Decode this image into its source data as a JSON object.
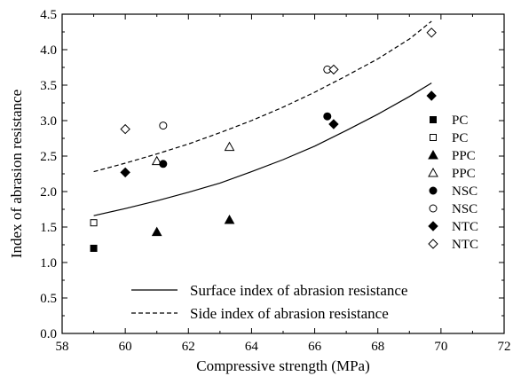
{
  "chart_data": {
    "type": "scatter",
    "title": "",
    "xlabel": "Compressive strength (MPa)",
    "ylabel": "Index of abrasion resistance",
    "xlim": [
      58,
      72
    ],
    "ylim": [
      0.0,
      4.5
    ],
    "xticks": [
      "58",
      "60",
      "62",
      "64",
      "66",
      "68",
      "70",
      "72"
    ],
    "yticks": [
      "0.0",
      "0.5",
      "1.0",
      "1.5",
      "2.0",
      "2.5",
      "3.0",
      "3.5",
      "4.0",
      "4.5"
    ],
    "grid": false,
    "legend_position": "right",
    "series": [
      {
        "name": "PC",
        "marker": "square",
        "filled": true,
        "points": [
          {
            "x": 59.0,
            "y": 1.2
          }
        ]
      },
      {
        "name": "PC",
        "marker": "square",
        "filled": false,
        "points": [
          {
            "x": 59.0,
            "y": 1.56
          }
        ]
      },
      {
        "name": "PPC",
        "marker": "triangle",
        "filled": true,
        "points": [
          {
            "x": 61.0,
            "y": 1.43
          },
          {
            "x": 63.3,
            "y": 1.6
          }
        ]
      },
      {
        "name": "PPC",
        "marker": "triangle",
        "filled": false,
        "points": [
          {
            "x": 61.0,
            "y": 2.43
          },
          {
            "x": 63.3,
            "y": 2.63
          }
        ]
      },
      {
        "name": "NSC",
        "marker": "circle",
        "filled": true,
        "points": [
          {
            "x": 61.2,
            "y": 2.39
          },
          {
            "x": 66.4,
            "y": 3.06
          }
        ]
      },
      {
        "name": "NSC",
        "marker": "circle",
        "filled": false,
        "points": [
          {
            "x": 61.2,
            "y": 2.93
          },
          {
            "x": 66.4,
            "y": 3.72
          }
        ]
      },
      {
        "name": "NTC",
        "marker": "diamond",
        "filled": true,
        "points": [
          {
            "x": 60.0,
            "y": 2.27
          },
          {
            "x": 66.6,
            "y": 2.95
          },
          {
            "x": 69.7,
            "y": 3.35
          }
        ]
      },
      {
        "name": "NTC",
        "marker": "diamond",
        "filled": false,
        "points": [
          {
            "x": 60.0,
            "y": 2.88
          },
          {
            "x": 66.6,
            "y": 3.72
          },
          {
            "x": 69.7,
            "y": 4.24
          }
        ]
      }
    ],
    "fit_lines": [
      {
        "name": "Surface index of abrasion resistance",
        "style": "solid",
        "points": [
          {
            "x": 59.0,
            "y": 1.66
          },
          {
            "x": 60.0,
            "y": 1.76
          },
          {
            "x": 61.0,
            "y": 1.87
          },
          {
            "x": 62.0,
            "y": 1.99
          },
          {
            "x": 63.0,
            "y": 2.12
          },
          {
            "x": 64.0,
            "y": 2.28
          },
          {
            "x": 65.0,
            "y": 2.45
          },
          {
            "x": 66.0,
            "y": 2.64
          },
          {
            "x": 67.0,
            "y": 2.86
          },
          {
            "x": 68.0,
            "y": 3.09
          },
          {
            "x": 69.0,
            "y": 3.34
          },
          {
            "x": 69.7,
            "y": 3.53
          }
        ]
      },
      {
        "name": "Side index of abrasion resistance",
        "style": "dashed",
        "points": [
          {
            "x": 59.0,
            "y": 2.28
          },
          {
            "x": 60.0,
            "y": 2.4
          },
          {
            "x": 61.0,
            "y": 2.53
          },
          {
            "x": 62.0,
            "y": 2.67
          },
          {
            "x": 63.0,
            "y": 2.83
          },
          {
            "x": 64.0,
            "y": 3.0
          },
          {
            "x": 65.0,
            "y": 3.19
          },
          {
            "x": 66.0,
            "y": 3.4
          },
          {
            "x": 67.0,
            "y": 3.63
          },
          {
            "x": 68.0,
            "y": 3.87
          },
          {
            "x": 69.0,
            "y": 4.15
          },
          {
            "x": 69.7,
            "y": 4.4
          }
        ]
      }
    ]
  }
}
